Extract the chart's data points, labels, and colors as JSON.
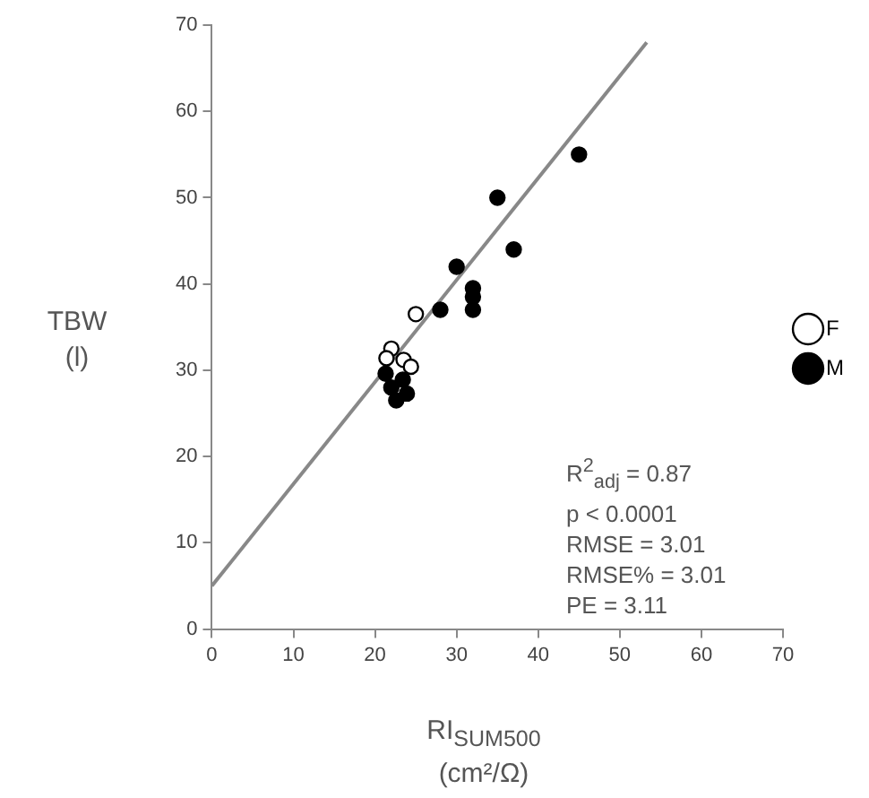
{
  "chart_data": {
    "type": "scatter",
    "xlabel": "RI$_{SUM500}$ (cm²/Ω)",
    "ylabel": "TBW (l)",
    "xlim": [
      0,
      70
    ],
    "xticks": [
      0,
      10,
      20,
      30,
      40,
      50,
      60,
      70
    ],
    "ylim": [
      0,
      70
    ],
    "yticks": [
      0,
      10,
      20,
      30,
      40,
      50,
      60,
      70
    ],
    "grid": false,
    "legend": "right",
    "marker": "circle",
    "series": [
      {
        "name": "F",
        "color": "#ffffff",
        "x": [
          22,
          23.5,
          25,
          24.4,
          21.4
        ],
        "values": [
          32.5,
          31.2,
          36.5,
          30.4,
          31.4
        ]
      },
      {
        "name": "M",
        "color": "#000000",
        "x": [
          21.3,
          22,
          23.4,
          23.9,
          22.6,
          28,
          30,
          32,
          32,
          32,
          35,
          37,
          45
        ],
        "values": [
          29.6,
          28,
          28.9,
          27.3,
          26.5,
          37,
          42,
          37,
          38.5,
          39.5,
          50,
          44,
          55
        ]
      },
      {
        "type": "line",
        "color": "#888888",
        "marker": "none",
        "x": [
          0,
          53.3
        ],
        "values": [
          5,
          68
        ]
      }
    ],
    "annotations": [
      "R$^{2}$$_{adj}$ = 0.87",
      "p < 0.0001",
      "RMSE = 3.01",
      "RMSE% = 3.01",
      "PE = 3.11"
    ]
  }
}
